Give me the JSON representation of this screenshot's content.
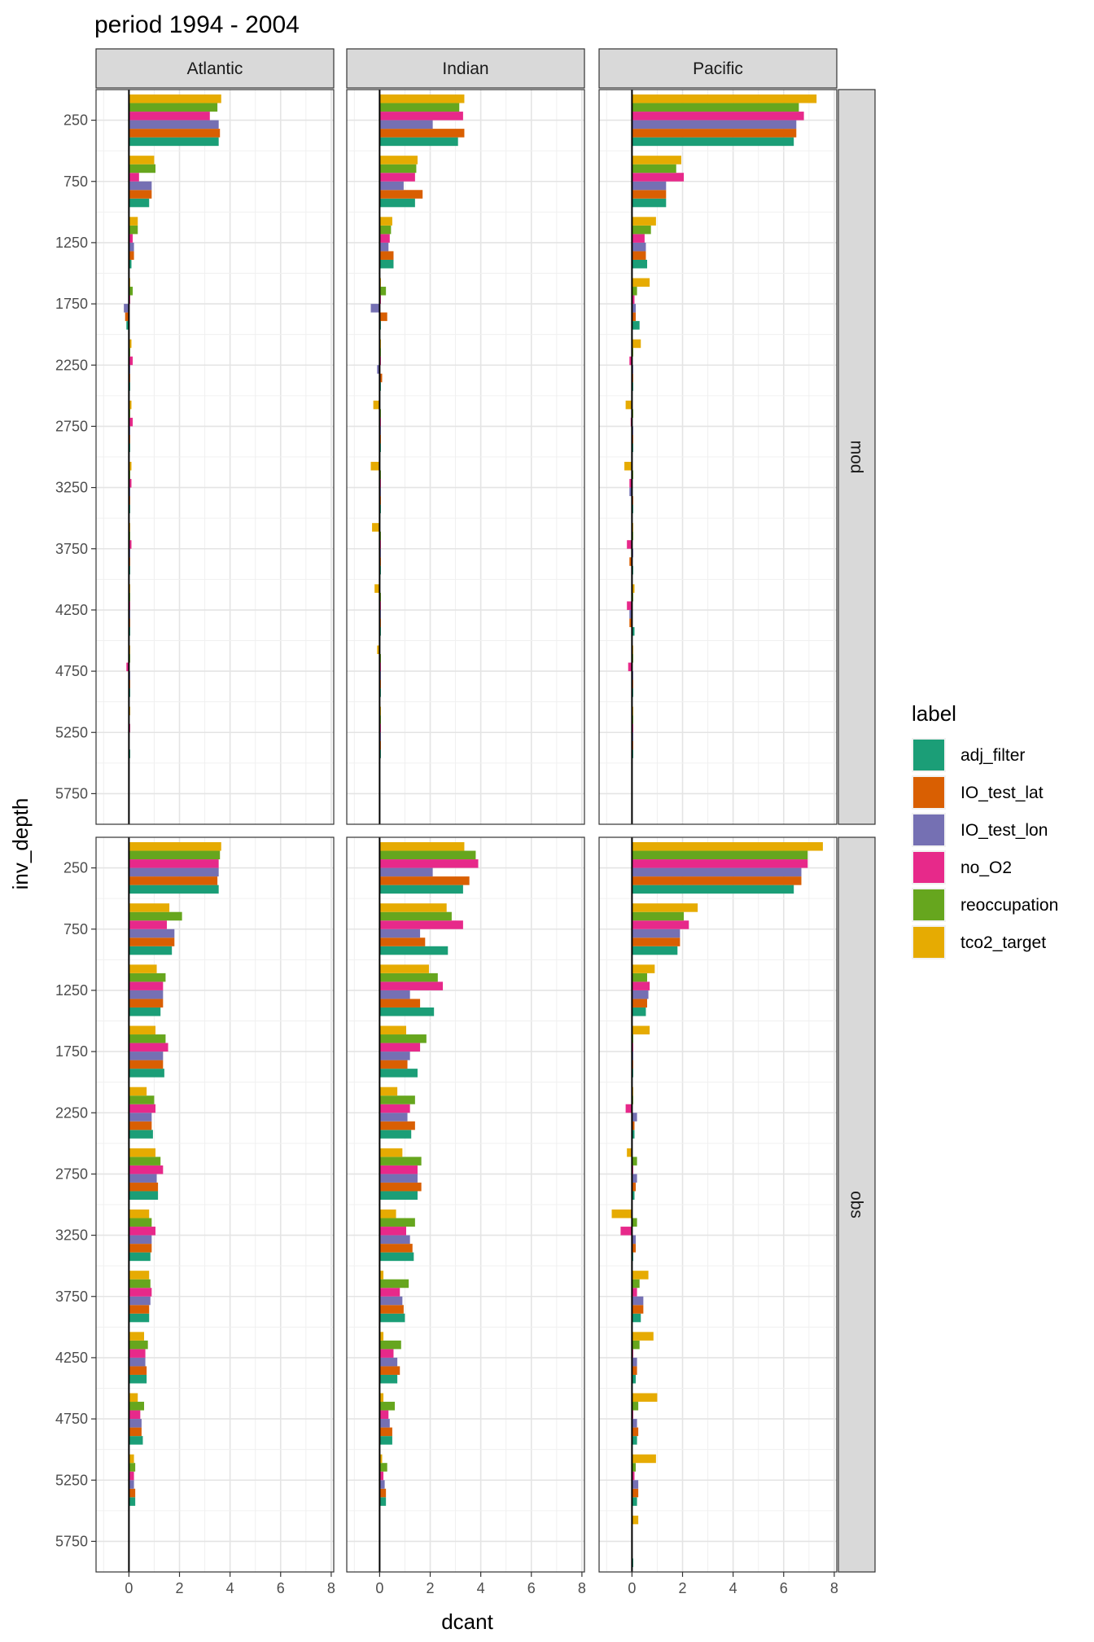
{
  "chart_data": {
    "type": "bar",
    "orientation": "horizontal",
    "title": "period 1994 - 2004",
    "xlabel": "dcant",
    "ylabel": "inv_depth",
    "xlim": [
      -1.3,
      8.1
    ],
    "x_ticks": [
      0,
      2,
      4,
      6,
      8
    ],
    "y_ticks": [
      250,
      750,
      1250,
      1750,
      2250,
      2750,
      3250,
      3750,
      4250,
      4750,
      5250,
      5750
    ],
    "categories": [
      250,
      750,
      1250,
      1750,
      2250,
      2750,
      3250,
      3750,
      4250,
      4750,
      5250,
      5750
    ],
    "ylim": [
      6000,
      0
    ],
    "grid": true,
    "legend_position": "right",
    "legend_title": "label",
    "colors": {
      "adj_filter": "#1b9e77",
      "IO_test_lat": "#d95f02",
      "IO_test_lon": "#7570b3",
      "no_O2": "#e7298a",
      "reoccupation": "#66a61e",
      "tco2_target": "#e6ab02"
    },
    "series_order": [
      "adj_filter",
      "IO_test_lat",
      "IO_test_lon",
      "no_O2",
      "reoccupation",
      "tco2_target"
    ],
    "facet_cols": [
      "Atlantic",
      "Indian",
      "Pacific"
    ],
    "facet_rows": [
      "mod",
      "obs"
    ],
    "panels": [
      {
        "row": "mod",
        "col": "Atlantic",
        "series": [
          {
            "name": "adj_filter",
            "values": [
              3.55,
              0.8,
              0.1,
              -0.1,
              0.05,
              0.05,
              0.05,
              0.05,
              0.05,
              0.05,
              0.05,
              0.0
            ]
          },
          {
            "name": "IO_test_lat",
            "values": [
              3.6,
              0.9,
              0.2,
              -0.15,
              0.05,
              0.05,
              0.05,
              0.05,
              0.05,
              0.05,
              0.0,
              0.0
            ]
          },
          {
            "name": "IO_test_lon",
            "values": [
              3.55,
              0.9,
              0.2,
              -0.2,
              0.05,
              0.05,
              0.05,
              0.05,
              0.05,
              0.05,
              0.0,
              0.0
            ]
          },
          {
            "name": "no_O2",
            "values": [
              3.2,
              0.4,
              0.15,
              0.05,
              0.15,
              0.15,
              0.1,
              0.1,
              0.05,
              -0.1,
              0.05,
              0.0
            ]
          },
          {
            "name": "reoccupation",
            "values": [
              3.5,
              1.05,
              0.35,
              0.15,
              0.05,
              0.05,
              0.05,
              0.05,
              0.05,
              0.05,
              0.0,
              0.0
            ]
          },
          {
            "name": "tco2_target",
            "values": [
              3.65,
              1.0,
              0.35,
              0.05,
              0.1,
              0.1,
              0.1,
              0.05,
              0.05,
              0.05,
              0.05,
              0.0
            ]
          }
        ]
      },
      {
        "row": "mod",
        "col": "Indian",
        "series": [
          {
            "name": "adj_filter",
            "values": [
              3.1,
              1.4,
              0.55,
              0.05,
              0.05,
              0.05,
              0.05,
              0.05,
              0.05,
              0.05,
              0.05,
              0.0
            ]
          },
          {
            "name": "IO_test_lat",
            "values": [
              3.35,
              1.7,
              0.55,
              0.3,
              0.1,
              0.05,
              0.05,
              0.05,
              0.05,
              0.05,
              0.05,
              0.0
            ]
          },
          {
            "name": "IO_test_lon",
            "values": [
              2.1,
              0.95,
              0.35,
              -0.35,
              -0.1,
              0.05,
              0.05,
              0.05,
              0.05,
              0.05,
              0.05,
              0.0
            ]
          },
          {
            "name": "no_O2",
            "values": [
              3.3,
              1.4,
              0.4,
              0.05,
              0.05,
              0.05,
              0.05,
              0.05,
              0.05,
              0.05,
              0.05,
              0.0
            ]
          },
          {
            "name": "reoccupation",
            "values": [
              3.15,
              1.45,
              0.45,
              0.25,
              0.05,
              0.05,
              0.05,
              0.05,
              0.05,
              0.05,
              0.05,
              0.0
            ]
          },
          {
            "name": "tco2_target",
            "values": [
              3.35,
              1.5,
              0.5,
              0.05,
              0.05,
              -0.25,
              -0.35,
              -0.3,
              -0.2,
              -0.1,
              0.05,
              0.0
            ]
          }
        ]
      },
      {
        "row": "mod",
        "col": "Pacific",
        "series": [
          {
            "name": "adj_filter",
            "values": [
              6.4,
              1.35,
              0.6,
              0.3,
              0.05,
              0.05,
              0.05,
              0.05,
              0.1,
              0.05,
              0.05,
              0.0
            ]
          },
          {
            "name": "IO_test_lat",
            "values": [
              6.5,
              1.35,
              0.55,
              0.15,
              0.05,
              0.05,
              0.05,
              -0.1,
              -0.1,
              0.05,
              0.05,
              0.0
            ]
          },
          {
            "name": "IO_test_lon",
            "values": [
              6.5,
              1.35,
              0.55,
              0.15,
              0.05,
              0.05,
              -0.1,
              0.05,
              -0.1,
              0.05,
              0.05,
              0.0
            ]
          },
          {
            "name": "no_O2",
            "values": [
              6.8,
              2.05,
              0.5,
              0.1,
              -0.1,
              -0.05,
              -0.1,
              -0.2,
              -0.2,
              -0.15,
              0.05,
              0.0
            ]
          },
          {
            "name": "reoccupation",
            "values": [
              6.6,
              1.75,
              0.75,
              0.2,
              0.05,
              0.05,
              0.05,
              0.05,
              0.05,
              0.05,
              0.05,
              0.0
            ]
          },
          {
            "name": "tco2_target",
            "values": [
              7.3,
              1.95,
              0.95,
              0.7,
              0.35,
              -0.25,
              -0.3,
              0.05,
              0.1,
              0.05,
              0.05,
              0.0
            ]
          }
        ]
      },
      {
        "row": "obs",
        "col": "Atlantic",
        "series": [
          {
            "name": "adj_filter",
            "values": [
              3.55,
              1.7,
              1.25,
              1.4,
              0.95,
              1.15,
              0.85,
              0.8,
              0.7,
              0.55,
              0.25,
              0.0
            ]
          },
          {
            "name": "IO_test_lat",
            "values": [
              3.5,
              1.8,
              1.35,
              1.35,
              0.9,
              1.15,
              0.9,
              0.8,
              0.7,
              0.5,
              0.25,
              0.0
            ]
          },
          {
            "name": "IO_test_lon",
            "values": [
              3.55,
              1.8,
              1.35,
              1.35,
              0.9,
              1.1,
              0.9,
              0.85,
              0.65,
              0.5,
              0.2,
              0.0
            ]
          },
          {
            "name": "no_O2",
            "values": [
              3.55,
              1.5,
              1.35,
              1.55,
              1.05,
              1.35,
              1.05,
              0.9,
              0.65,
              0.45,
              0.2,
              0.0
            ]
          },
          {
            "name": "reoccupation",
            "values": [
              3.6,
              2.1,
              1.45,
              1.45,
              1.0,
              1.25,
              0.9,
              0.85,
              0.75,
              0.6,
              0.25,
              0.0
            ]
          },
          {
            "name": "tco2_target",
            "values": [
              3.65,
              1.6,
              1.1,
              1.05,
              0.7,
              1.05,
              0.8,
              0.8,
              0.6,
              0.35,
              0.2,
              0.0
            ]
          }
        ]
      },
      {
        "row": "obs",
        "col": "Indian",
        "series": [
          {
            "name": "adj_filter",
            "values": [
              3.3,
              2.7,
              2.15,
              1.5,
              1.25,
              1.5,
              1.35,
              1.0,
              0.7,
              0.5,
              0.25,
              0.0
            ]
          },
          {
            "name": "IO_test_lat",
            "values": [
              3.55,
              1.8,
              1.6,
              1.1,
              1.4,
              1.65,
              1.3,
              0.95,
              0.8,
              0.5,
              0.25,
              0.0
            ]
          },
          {
            "name": "IO_test_lon",
            "values": [
              2.1,
              1.6,
              1.2,
              1.2,
              1.1,
              1.5,
              1.2,
              0.9,
              0.7,
              0.4,
              0.2,
              0.0
            ]
          },
          {
            "name": "no_O2",
            "values": [
              3.9,
              3.3,
              2.5,
              1.6,
              1.2,
              1.5,
              1.05,
              0.8,
              0.55,
              0.35,
              0.15,
              0.0
            ]
          },
          {
            "name": "reoccupation",
            "values": [
              3.8,
              2.85,
              2.3,
              1.85,
              1.4,
              1.65,
              1.4,
              1.15,
              0.85,
              0.6,
              0.3,
              0.0
            ]
          },
          {
            "name": "tco2_target",
            "values": [
              3.35,
              2.65,
              1.95,
              1.05,
              0.7,
              0.9,
              0.65,
              0.15,
              0.15,
              0.15,
              0.1,
              0.0
            ]
          }
        ]
      },
      {
        "row": "obs",
        "col": "Pacific",
        "series": [
          {
            "name": "adj_filter",
            "values": [
              6.4,
              1.8,
              0.55,
              0.05,
              0.1,
              0.1,
              0.05,
              0.35,
              0.15,
              0.2,
              0.2,
              0.05
            ]
          },
          {
            "name": "IO_test_lat",
            "values": [
              6.7,
              1.9,
              0.6,
              0.05,
              0.1,
              0.15,
              0.15,
              0.45,
              0.2,
              0.25,
              0.25,
              0.0
            ]
          },
          {
            "name": "IO_test_lon",
            "values": [
              6.7,
              1.9,
              0.65,
              0.05,
              0.2,
              0.2,
              0.15,
              0.45,
              0.2,
              0.2,
              0.25,
              0.0
            ]
          },
          {
            "name": "no_O2",
            "values": [
              6.95,
              2.25,
              0.7,
              0.05,
              -0.25,
              0.05,
              -0.45,
              0.2,
              0.05,
              0.05,
              0.1,
              0.0
            ]
          },
          {
            "name": "reoccupation",
            "values": [
              6.95,
              2.05,
              0.6,
              0.05,
              0.05,
              0.2,
              0.2,
              0.3,
              0.3,
              0.25,
              0.15,
              0.0
            ]
          },
          {
            "name": "tco2_target",
            "values": [
              7.55,
              2.6,
              0.9,
              0.7,
              0.05,
              -0.2,
              -0.8,
              0.65,
              0.85,
              1.0,
              0.95,
              0.25
            ]
          }
        ]
      }
    ]
  }
}
